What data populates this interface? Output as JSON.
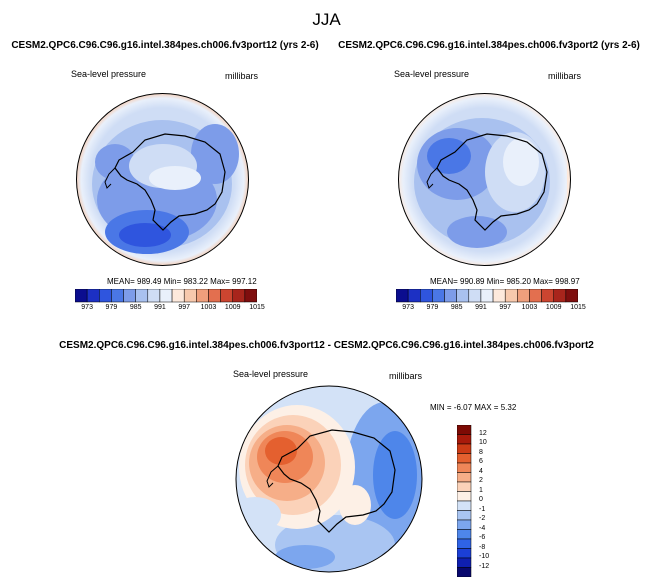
{
  "figure": {
    "season": "JJA",
    "left_title": "CESM2.QPC6.C96.C96.g16.intel.384pes.ch006.fv3port12 (yrs 2-6)",
    "right_title": "CESM2.QPC6.C96.C96.g16.intel.384pes.ch006.fv3port2 (yrs 2-6)",
    "diff_title": "CESM2.QPC6.C96.C96.g16.intel.384pes.ch006.fv3port12 - CESM2.QPC6.C96.C96.g16.intel.384pes.ch006.fv3port2",
    "variable": "Sea-level pressure",
    "units": "millibars",
    "left_stats": "MEAN= 989.49   Min= 983.22   Max= 997.12",
    "right_stats": "MEAN= 990.89   Min= 985.20   Max= 998.97",
    "diff_stats": "MIN =  -6.07 MAX =   5.32"
  },
  "chart_data": [
    {
      "type": "heatmap",
      "projection": "south-polar-stereographic",
      "title": "CESM2.QPC6.C96.C96.g16.intel.384pes.ch006.fv3port12 (yrs 2-6)",
      "variable": "Sea-level pressure",
      "units": "millibars",
      "stats": {
        "mean": 989.49,
        "min": 983.22,
        "max": 997.12
      },
      "colorbar_levels": [
        973,
        979,
        985,
        991,
        997,
        1003,
        1009,
        1015
      ],
      "colorbar_colors": [
        "#0b0d8f",
        "#1c30c4",
        "#2f55de",
        "#4a77e6",
        "#7d9ce9",
        "#a9c1ef",
        "#cfddf5",
        "#e9f0fb",
        "#fde9dc",
        "#f7c9ad",
        "#ef9f7c",
        "#e36f4f",
        "#cc4530",
        "#a8251c",
        "#7f0e0e"
      ]
    },
    {
      "type": "heatmap",
      "projection": "south-polar-stereographic",
      "title": "CESM2.QPC6.C96.C96.g16.intel.384pes.ch006.fv3port2 (yrs 2-6)",
      "variable": "Sea-level pressure",
      "units": "millibars",
      "stats": {
        "mean": 990.89,
        "min": 985.2,
        "max": 998.97
      },
      "colorbar_levels": [
        973,
        979,
        985,
        991,
        997,
        1003,
        1009,
        1015
      ],
      "colorbar_colors": [
        "#0b0d8f",
        "#1c30c4",
        "#2f55de",
        "#4a77e6",
        "#7d9ce9",
        "#a9c1ef",
        "#cfddf5",
        "#e9f0fb",
        "#fde9dc",
        "#f7c9ad",
        "#ef9f7c",
        "#e36f4f",
        "#cc4530",
        "#a8251c",
        "#7f0e0e"
      ]
    },
    {
      "type": "heatmap",
      "projection": "south-polar-stereographic",
      "title": "CESM2.QPC6.C96.C96.g16.intel.384pes.ch006.fv3port12 - CESM2.QPC6.C96.C96.g16.intel.384pes.ch006.fv3port2",
      "variable": "Sea-level pressure",
      "units": "millibars",
      "stats": {
        "min": -6.07,
        "max": 5.32
      },
      "colorbar_levels": [
        -12,
        -10,
        -8,
        -6,
        -4,
        -2,
        -1,
        0,
        1,
        2,
        4,
        6,
        8,
        10,
        12
      ],
      "colorbar_colors": [
        "#08086e",
        "#0f1fb0",
        "#1b3fd6",
        "#2f63e6",
        "#4e86ea",
        "#7ca6ee",
        "#a9c5f2",
        "#d3e2f7",
        "#fdf0e6",
        "#fbd2b9",
        "#f6ae88",
        "#ef8658",
        "#e4602f",
        "#cc3b16",
        "#a81a0b",
        "#7d0a04"
      ]
    }
  ]
}
